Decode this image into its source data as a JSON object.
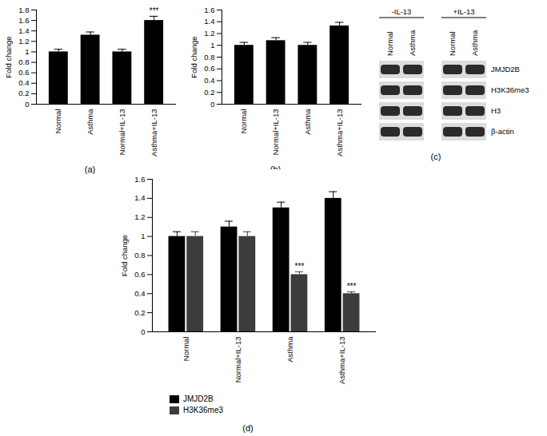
{
  "chart_data": [
    {
      "type": "bar",
      "panel": "(a)",
      "y_label": "Fold change",
      "categories": [
        "Normal",
        "Asthma",
        "Normal+IL-13",
        "Asthma+IL-13"
      ],
      "series": [
        {
          "name": "Fold change",
          "color": "#000000",
          "values": [
            1.0,
            1.32,
            1.0,
            1.6
          ],
          "errors": [
            0.05,
            0.06,
            0.05,
            0.08
          ]
        }
      ],
      "ylim": [
        0,
        1.8
      ],
      "yticks": [
        0,
        0.2,
        0.4,
        0.6,
        0.8,
        1,
        1.2,
        1.4,
        1.6,
        1.8
      ],
      "annotations": [
        {
          "category": "Asthma+IL-13",
          "series": "Fold change",
          "text": "***"
        }
      ]
    },
    {
      "type": "bar",
      "panel": "(b)",
      "y_label": "Fold change",
      "categories": [
        "Normal",
        "Normal+IL-13",
        "Asthma",
        "Asthma+IL-13"
      ],
      "series": [
        {
          "name": "Fold change",
          "color": "#000000",
          "values": [
            1.0,
            1.08,
            1.0,
            1.33
          ],
          "errors": [
            0.05,
            0.05,
            0.05,
            0.06
          ]
        }
      ],
      "ylim": [
        0,
        1.6
      ],
      "yticks": [
        0,
        0.2,
        0.4,
        0.6,
        0.8,
        1,
        1.2,
        1.4,
        1.6
      ],
      "annotations": []
    },
    {
      "type": "western_blot",
      "panel": "(c)",
      "groups": [
        {
          "title": "-IL-13",
          "lanes": [
            "Normal",
            "Asthma"
          ]
        },
        {
          "title": "+IL-13",
          "lanes": [
            "Normal",
            "Asthma"
          ]
        }
      ],
      "rows": [
        "JMJD2B",
        "H3K36me3",
        "H3",
        "β-actin"
      ]
    },
    {
      "type": "bar",
      "panel": "(d)",
      "y_label": "Fold change",
      "categories": [
        "Normal",
        "Normal+IL-13",
        "Asthma",
        "Asthma+IL-13"
      ],
      "series": [
        {
          "name": "JMJD2B",
          "color": "#000000",
          "values": [
            1.0,
            1.1,
            1.3,
            1.4
          ],
          "errors": [
            0.05,
            0.06,
            0.06,
            0.07
          ]
        },
        {
          "name": "H3K36me3",
          "color": "#3c3c3c",
          "values": [
            1.0,
            1.0,
            0.6,
            0.4
          ],
          "errors": [
            0.05,
            0.05,
            0.03,
            0.02
          ]
        }
      ],
      "ylim": [
        0,
        1.6
      ],
      "yticks": [
        0,
        0.2,
        0.4,
        0.6,
        0.8,
        1,
        1.2,
        1.4,
        1.6
      ],
      "legend": "bottom-left",
      "annotations": [
        {
          "category": "Asthma",
          "series": "H3K36me3",
          "text": "***"
        },
        {
          "category": "Asthma+IL-13",
          "series": "H3K36me3",
          "text": "***"
        }
      ]
    }
  ]
}
